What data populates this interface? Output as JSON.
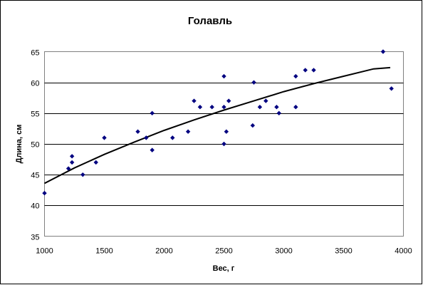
{
  "chart_data": {
    "type": "scatter",
    "title": "Голавль",
    "xlabel": "Вес, г",
    "ylabel": "Длина, см",
    "xlim": [
      1000,
      4000
    ],
    "ylim": [
      35,
      65
    ],
    "xticks": [
      1000,
      1500,
      2000,
      2500,
      3000,
      3500,
      4000
    ],
    "yticks": [
      35,
      40,
      45,
      50,
      55,
      60,
      65
    ],
    "grid": "horizontal major gridlines",
    "legend": "none",
    "marker_color": "#000080",
    "marker_shape": "diamond",
    "series": [
      {
        "points": [
          [
            1000,
            42
          ],
          [
            1200,
            46
          ],
          [
            1230,
            47
          ],
          [
            1230,
            48
          ],
          [
            1320,
            45
          ],
          [
            1430,
            47
          ],
          [
            1500,
            51
          ],
          [
            1780,
            52
          ],
          [
            1850,
            51
          ],
          [
            1900,
            55
          ],
          [
            1900,
            49
          ],
          [
            2070,
            51
          ],
          [
            2200,
            52
          ],
          [
            2250,
            57
          ],
          [
            2300,
            56
          ],
          [
            2400,
            56
          ],
          [
            2500,
            61
          ],
          [
            2500,
            56
          ],
          [
            2500,
            50
          ],
          [
            2520,
            52
          ],
          [
            2540,
            57
          ],
          [
            2750,
            60
          ],
          [
            2740,
            53
          ],
          [
            2800,
            56
          ],
          [
            2850,
            57
          ],
          [
            2940,
            56
          ],
          [
            2960,
            55
          ],
          [
            3100,
            61
          ],
          [
            3100,
            56
          ],
          [
            3180,
            62
          ],
          [
            3250,
            62
          ],
          [
            3830,
            65
          ],
          [
            3900,
            59
          ]
        ]
      }
    ],
    "trendline": {
      "x": [
        1000,
        1250,
        1500,
        1750,
        2000,
        2250,
        2500,
        2750,
        3000,
        3250,
        3500,
        3750,
        3890
      ],
      "y": [
        43.6,
        46.1,
        48.3,
        50.3,
        52.2,
        53.9,
        55.5,
        57.0,
        58.5,
        59.8,
        61.0,
        62.2,
        62.4
      ]
    }
  }
}
